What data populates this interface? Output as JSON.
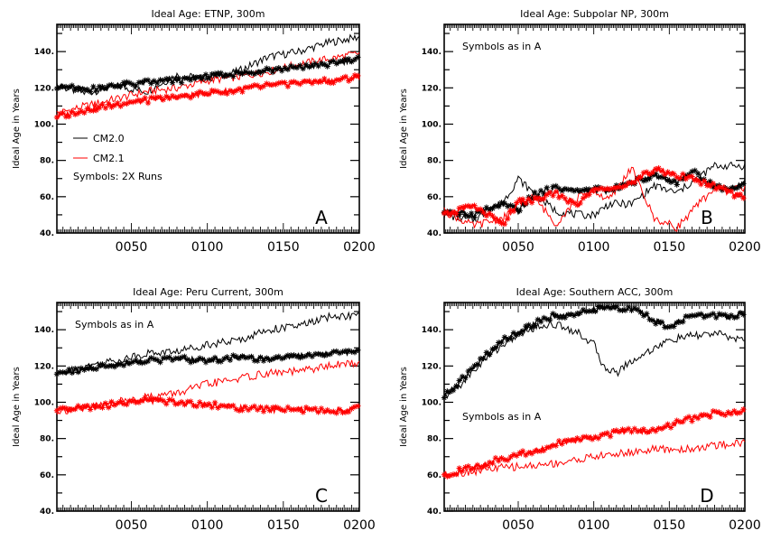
{
  "chart_data": [
    {
      "type": "line",
      "title": "Ideal Age: ETNP, 300m",
      "panel_letter": "A",
      "ylabel": "Ideal Age in Years",
      "xlabel": "",
      "xlim": [
        1,
        200
      ],
      "ylim": [
        40,
        155
      ],
      "xticks": [
        "0050",
        "0100",
        "0150",
        "0200"
      ],
      "yticks": [
        "40.",
        "60.",
        "80.",
        "100.",
        "120.",
        "140."
      ],
      "legend": {
        "placement": "middle-left",
        "entries": [
          "CM2.0",
          "CM2.1"
        ],
        "note": "Symbols: 2X Runs"
      },
      "series": [
        {
          "name": "CM2.0",
          "color": "#000000",
          "style": "line",
          "x": [
            1,
            20,
            40,
            60,
            80,
            100,
            120,
            140,
            160,
            180,
            200
          ],
          "values": [
            121,
            117,
            121,
            118,
            127,
            125,
            129,
            137,
            140,
            145,
            148
          ]
        },
        {
          "name": "CM2.1",
          "color": "#ff0000",
          "style": "line",
          "x": [
            1,
            20,
            40,
            60,
            80,
            100,
            120,
            140,
            160,
            180,
            200
          ],
          "values": [
            106,
            110,
            114,
            118,
            120,
            124,
            126,
            129,
            133,
            136,
            139
          ]
        },
        {
          "name": "",
          "color": "#000000",
          "style": "symbols",
          "x": [
            1,
            20,
            40,
            60,
            80,
            100,
            120,
            140,
            160,
            180,
            200
          ],
          "values": [
            121,
            119,
            121,
            123,
            124,
            126,
            128,
            130,
            131,
            133,
            136
          ]
        },
        {
          "name": "",
          "color": "#ff0000",
          "style": "symbols",
          "x": [
            1,
            20,
            40,
            60,
            80,
            100,
            120,
            140,
            160,
            180,
            200
          ],
          "values": [
            104,
            108,
            111,
            113,
            115,
            117,
            119,
            121,
            123,
            124,
            126
          ]
        }
      ]
    },
    {
      "type": "line",
      "title": "Ideal Age: Subpolar NP, 300m",
      "panel_letter": "B",
      "ylabel": "Ideal Age in Years",
      "xlabel": "",
      "xlim": [
        1,
        200
      ],
      "ylim": [
        40,
        155
      ],
      "xticks": [
        "0050",
        "0100",
        "0150",
        "0200"
      ],
      "yticks": [
        "40.",
        "60.",
        "80.",
        "100.",
        "120.",
        "140."
      ],
      "note": "Symbols as in A",
      "series": [
        {
          "name": "CM2.0",
          "color": "#000000",
          "style": "line",
          "x": [
            1,
            20,
            40,
            50,
            60,
            75,
            90,
            100,
            110,
            125,
            140,
            155,
            165,
            180
          ],
          "values": [
            50,
            47,
            57,
            70,
            62,
            52,
            50,
            50,
            56,
            56,
            66,
            62,
            68,
            77
          ]
        },
        {
          "name": "CM2.1",
          "color": "#ff0000",
          "style": "line",
          "x": [
            1,
            20,
            40,
            50,
            60,
            75,
            90,
            100,
            110,
            125,
            140,
            155,
            165,
            180
          ],
          "values": [
            52,
            44,
            48,
            55,
            60,
            45,
            60,
            63,
            58,
            76,
            48,
            43,
            52,
            65
          ]
        },
        {
          "name": "",
          "color": "#000000",
          "style": "symbols",
          "x": [
            1,
            20,
            40,
            50,
            60,
            75,
            90,
            100,
            110,
            125,
            140,
            155,
            165,
            180,
            190,
            200
          ],
          "values": [
            52,
            50,
            56,
            52,
            61,
            65,
            63,
            64,
            63,
            68,
            72,
            68,
            74,
            66,
            64,
            68
          ]
        },
        {
          "name": "",
          "color": "#ff0000",
          "style": "symbols",
          "x": [
            1,
            20,
            40,
            50,
            60,
            75,
            90,
            100,
            110,
            125,
            140,
            155,
            165,
            180,
            190,
            200
          ],
          "values": [
            50,
            55,
            45,
            57,
            58,
            62,
            55,
            66,
            63,
            68,
            75,
            72,
            70,
            66,
            62,
            60
          ]
        }
      ]
    },
    {
      "type": "line",
      "title": "Ideal Age: Peru Current, 300m",
      "panel_letter": "C",
      "ylabel": "Ideal Age in Years",
      "xlabel": "",
      "xlim": [
        1,
        200
      ],
      "ylim": [
        40,
        155
      ],
      "xticks": [
        "0050",
        "0100",
        "0150",
        "0200"
      ],
      "yticks": [
        "40.",
        "60.",
        "80.",
        "100.",
        "120.",
        "140."
      ],
      "note": "Symbols as in A",
      "series": [
        {
          "name": "CM2.0",
          "color": "#000000",
          "style": "line",
          "x": [
            1,
            20,
            40,
            60,
            80,
            100,
            120,
            140,
            160,
            180,
            200
          ],
          "values": [
            115,
            120,
            123,
            127,
            128,
            132,
            134,
            140,
            142,
            147,
            148
          ]
        },
        {
          "name": "CM2.1",
          "color": "#ff0000",
          "style": "line",
          "x": [
            1,
            20,
            40,
            60,
            80,
            100,
            120,
            140,
            160,
            180,
            200
          ],
          "values": [
            95,
            97,
            100,
            103,
            105,
            110,
            113,
            116,
            117,
            120,
            122
          ]
        },
        {
          "name": "",
          "color": "#000000",
          "style": "symbols",
          "x": [
            1,
            20,
            40,
            60,
            80,
            100,
            120,
            140,
            160,
            180,
            200
          ],
          "values": [
            116,
            118,
            121,
            123,
            124,
            123,
            125,
            124,
            126,
            127,
            128
          ]
        },
        {
          "name": "",
          "color": "#ff0000",
          "style": "symbols",
          "x": [
            1,
            20,
            40,
            60,
            80,
            100,
            120,
            140,
            160,
            180,
            200
          ],
          "values": [
            95,
            97,
            99,
            101,
            100,
            99,
            97,
            96,
            96,
            95,
            97
          ]
        }
      ]
    },
    {
      "type": "line",
      "title": "Ideal Age: Southern ACC, 300m",
      "panel_letter": "D",
      "ylabel": "Ideal Age in Years",
      "xlabel": "",
      "xlim": [
        1,
        200
      ],
      "ylim": [
        40,
        155
      ],
      "xticks": [
        "0050",
        "0100",
        "0150",
        "0200"
      ],
      "yticks": [
        "40.",
        "60.",
        "80.",
        "100.",
        "120.",
        "140."
      ],
      "note": "Symbols as in A",
      "series": [
        {
          "name": "CM2.0",
          "color": "#000000",
          "style": "line",
          "x": [
            1,
            10,
            20,
            30,
            40,
            50,
            60,
            70,
            80,
            90,
            100,
            105,
            110,
            115,
            120,
            130,
            140,
            150,
            160,
            170,
            180,
            190,
            200
          ],
          "values": [
            103,
            108,
            117,
            125,
            132,
            137,
            141,
            143,
            142,
            138,
            132,
            122,
            118,
            116,
            120,
            125,
            130,
            134,
            136,
            137,
            138,
            136,
            134
          ]
        },
        {
          "name": "CM2.1",
          "color": "#ff0000",
          "style": "line",
          "x": [
            1,
            20,
            40,
            60,
            80,
            100,
            120,
            140,
            160,
            180,
            200
          ],
          "values": [
            60,
            62,
            64,
            65,
            67,
            70,
            72,
            74,
            74,
            76,
            78
          ]
        },
        {
          "name": "",
          "color": "#000000",
          "style": "symbols",
          "x": [
            1,
            10,
            20,
            30,
            40,
            50,
            60,
            70,
            80,
            90,
            100,
            110,
            120,
            130,
            140,
            150,
            160,
            170,
            180,
            190,
            200
          ],
          "values": [
            103,
            110,
            119,
            127,
            134,
            139,
            143,
            147,
            148,
            149,
            151,
            152,
            152,
            150,
            145,
            142,
            146,
            148,
            148,
            147,
            150
          ]
        },
        {
          "name": "",
          "color": "#ff0000",
          "style": "symbols",
          "x": [
            1,
            20,
            40,
            60,
            80,
            100,
            120,
            140,
            160,
            180,
            200
          ],
          "values": [
            60,
            64,
            69,
            73,
            78,
            81,
            84,
            84,
            90,
            94,
            95
          ]
        }
      ]
    }
  ]
}
